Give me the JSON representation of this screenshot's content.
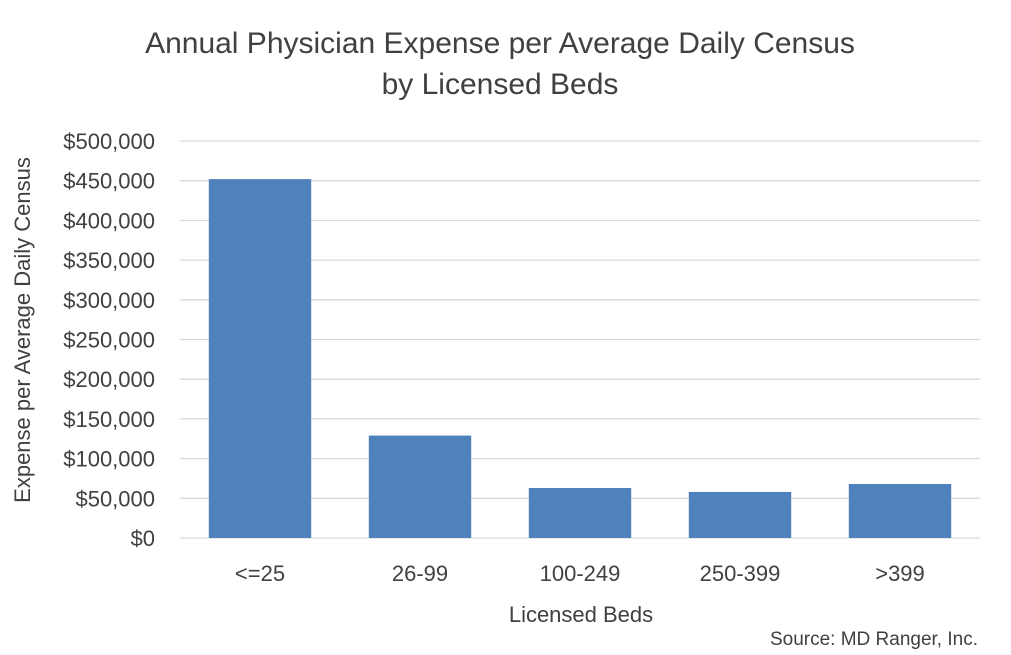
{
  "chart_data": {
    "type": "bar",
    "title": [
      "Annual Physician Expense per Average Daily Census",
      "by Licensed Beds"
    ],
    "xlabel": "Licensed Beds",
    "ylabel": "Expense per Average Daily Census",
    "categories": [
      "<=25",
      "26-99",
      "100-249",
      "250-399",
      ">399"
    ],
    "values": [
      452000,
      129000,
      63000,
      58000,
      68000
    ],
    "ylim": [
      0,
      500000
    ],
    "yticks": [
      0,
      50000,
      100000,
      150000,
      200000,
      250000,
      300000,
      350000,
      400000,
      450000,
      500000
    ],
    "ytick_labels": [
      "$0",
      "$50,000",
      "$100,000",
      "$150,000",
      "$200,000",
      "$250,000",
      "$300,000",
      "$350,000",
      "$400,000",
      "$450,000",
      "$500,000"
    ],
    "grid": true,
    "legend": false,
    "bar_color": "#4f81bd",
    "grid_color": "#d9d9d9"
  },
  "source": "Source: MD Ranger, Inc."
}
